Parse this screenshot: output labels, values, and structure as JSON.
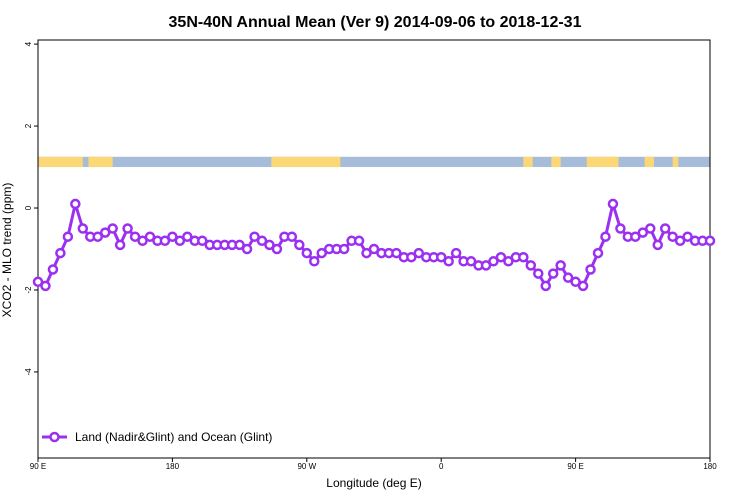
{
  "chart_data": {
    "type": "line",
    "title": "35N-40N Annual Mean (Ver 9)   2014-09-06 to 2018-12-31",
    "xlabel": "Longitude (deg E)",
    "ylabel": "XCO2 - MLO trend (ppm)",
    "x_ticks": [
      "90 E",
      "180",
      "90 W",
      "0",
      "90 E",
      "180"
    ],
    "y_ticks": [
      "4",
      "2",
      "0",
      "-2",
      "-4"
    ],
    "y_tick_values": [
      4,
      2,
      0,
      -2,
      -4
    ],
    "xlim": [
      90,
      450
    ],
    "ylim": [
      -6.1,
      4.1
    ],
    "grid": false,
    "legend_position": "bottom-left",
    "colors": {
      "series": "#9b30f0",
      "land": "#fbd875",
      "ocean": "#a7bcd8"
    },
    "land_ocean_strip": {
      "y_range": [
        1.0,
        1.25
      ],
      "land_segments": [
        [
          90,
          114
        ],
        [
          117,
          130
        ],
        [
          215,
          252
        ],
        [
          350,
          355
        ],
        [
          365,
          370
        ],
        [
          384,
          401
        ],
        [
          415,
          420
        ],
        [
          430,
          433
        ]
      ]
    },
    "series": [
      {
        "name": "Land (Nadir&Glint) and Ocean (Glint)",
        "x": [
          90,
          94,
          98,
          102,
          106,
          110,
          114,
          118,
          122,
          126,
          130,
          134,
          138,
          142,
          146,
          150,
          154,
          158,
          162,
          166,
          170,
          174,
          178,
          182,
          186,
          190,
          194,
          198,
          202,
          206,
          210,
          214,
          218,
          222,
          226,
          230,
          234,
          238,
          242,
          246,
          250,
          254,
          258,
          262,
          266,
          270,
          274,
          278,
          282,
          286,
          290,
          294,
          298,
          302,
          306,
          310,
          314,
          318,
          322,
          326,
          330,
          334,
          338,
          342,
          346,
          350,
          354,
          358,
          362,
          366,
          370,
          374,
          378,
          382,
          386,
          390,
          394,
          398,
          402,
          406,
          410,
          414,
          418,
          422,
          426,
          430,
          434,
          438,
          442,
          446,
          450
        ],
        "y": [
          -1.8,
          -1.9,
          -1.5,
          -1.1,
          -0.7,
          0.1,
          -0.5,
          -0.7,
          -0.7,
          -0.6,
          -0.5,
          -0.9,
          -0.5,
          -0.7,
          -0.8,
          -0.7,
          -0.8,
          -0.8,
          -0.7,
          -0.8,
          -0.7,
          -0.8,
          -0.8,
          -0.9,
          -0.9,
          -0.9,
          -0.9,
          -0.9,
          -1.0,
          -0.7,
          -0.8,
          -0.9,
          -1.0,
          -0.7,
          -0.7,
          -0.9,
          -1.1,
          -1.3,
          -1.1,
          -1.0,
          -1.0,
          -1.0,
          -0.8,
          -0.8,
          -1.1,
          -1.0,
          -1.1,
          -1.1,
          -1.1,
          -1.2,
          -1.2,
          -1.1,
          -1.2,
          -1.2,
          -1.2,
          -1.3,
          -1.1,
          -1.3,
          -1.3,
          -1.4,
          -1.4,
          -1.3,
          -1.2,
          -1.3,
          -1.2,
          -1.2,
          -1.4,
          -1.6,
          -1.9,
          -1.6,
          -1.4,
          -1.7,
          -1.8,
          -1.9,
          -1.5,
          -1.1,
          -0.7,
          0.1,
          -0.5,
          -0.7,
          -0.7,
          -0.6,
          -0.5,
          -0.9,
          -0.5,
          -0.7,
          -0.8,
          -0.7,
          -0.8,
          -0.8,
          -0.8
        ]
      }
    ]
  }
}
